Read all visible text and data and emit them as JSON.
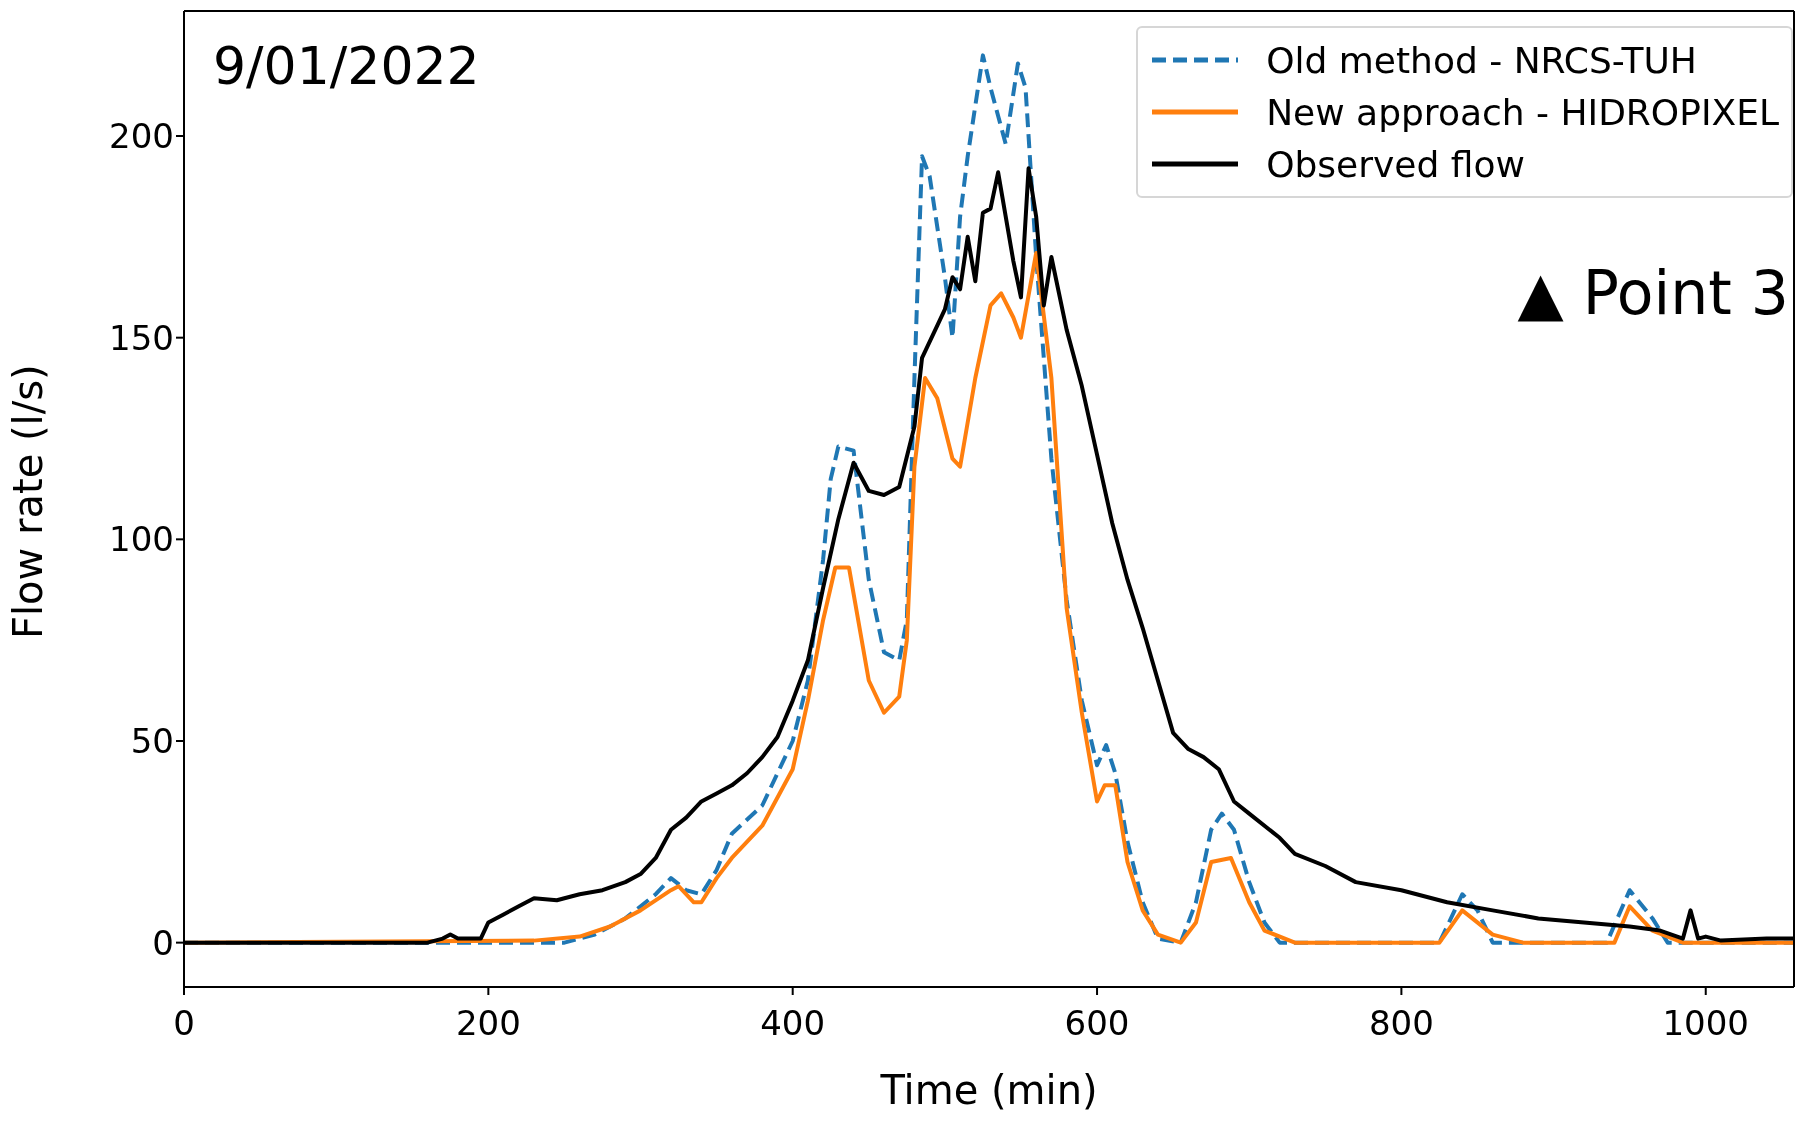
{
  "chart_data": {
    "type": "line",
    "xlabel": "Time (min)",
    "ylabel": "Flow rate (l/s)",
    "xlim": [
      0,
      1058
    ],
    "ylim": [
      -11,
      231
    ],
    "xticks": [
      0,
      200,
      400,
      600,
      800,
      1000
    ],
    "yticks": [
      0,
      50,
      100,
      150,
      200
    ],
    "legend": "top right",
    "marker": "none",
    "annotations": [
      "9/01/2022",
      "▲ Point 3"
    ],
    "series": [
      {
        "name": "Old method - NRCS-TUH",
        "color": "#1f77b4",
        "line_style": "dashed",
        "x": [
          0,
          250,
          270,
          290,
          310,
          320,
          330,
          340,
          350,
          360,
          380,
          400,
          410,
          420,
          425,
          430,
          440,
          450,
          460,
          470,
          475,
          480,
          485,
          490,
          500,
          505,
          510,
          515,
          525,
          530,
          540,
          548,
          553,
          560,
          570,
          580,
          590,
          600,
          606,
          612,
          620,
          630,
          640,
          655,
          665,
          675,
          682,
          690,
          700,
          710,
          720,
          825,
          840,
          850,
          860,
          935,
          950,
          965,
          975,
          1058
        ],
        "values": [
          0,
          0,
          2,
          6,
          12,
          16,
          13,
          12,
          18,
          27,
          34,
          50,
          65,
          95,
          115,
          123,
          122,
          90,
          72,
          70,
          80,
          140,
          195,
          190,
          165,
          150,
          180,
          195,
          220,
          212,
          198,
          218,
          212,
          170,
          120,
          85,
          60,
          44,
          49,
          42,
          25,
          10,
          1,
          0,
          10,
          28,
          32,
          28,
          15,
          5,
          0,
          0,
          12,
          8,
          0,
          0,
          13,
          6,
          0,
          0
        ]
      },
      {
        "name": "New approach - HIDROPIXEL",
        "color": "#ff7f0e",
        "line_style": "solid",
        "x": [
          0,
          230,
          260,
          280,
          300,
          320,
          325,
          335,
          340,
          350,
          360,
          380,
          400,
          410,
          420,
          428,
          437,
          450,
          460,
          470,
          475,
          480,
          487,
          495,
          505,
          510,
          520,
          530,
          537,
          545,
          550,
          560,
          570,
          580,
          590,
          600,
          605,
          612,
          620,
          630,
          640,
          655,
          665,
          675,
          688,
          700,
          710,
          730,
          825,
          840,
          860,
          880,
          940,
          950,
          965,
          985,
          1058
        ],
        "values": [
          0,
          0.5,
          1.5,
          4,
          8,
          13,
          14,
          10,
          10,
          16,
          21,
          29,
          43,
          60,
          80,
          93,
          93,
          65,
          57,
          61,
          75,
          118,
          140,
          135,
          120,
          118,
          140,
          158,
          161,
          155,
          150,
          171,
          140,
          83,
          57,
          35,
          39,
          39,
          20,
          8,
          2,
          0,
          5,
          20,
          21,
          10,
          3,
          0,
          0,
          8,
          2,
          0,
          0,
          9,
          3,
          0,
          0
        ]
      },
      {
        "name": "Observed flow",
        "color": "#000000",
        "line_style": "solid",
        "x": [
          0,
          160,
          170,
          175,
          180,
          195,
          200,
          210,
          220,
          230,
          245,
          260,
          275,
          290,
          300,
          310,
          320,
          330,
          340,
          350,
          360,
          370,
          380,
          390,
          400,
          410,
          420,
          430,
          440,
          450,
          460,
          470,
          480,
          485,
          495,
          500,
          505,
          510,
          515,
          520,
          525,
          530,
          535,
          545,
          550,
          555,
          560,
          565,
          570,
          580,
          590,
          600,
          610,
          620,
          630,
          640,
          650,
          660,
          670,
          680,
          690,
          700,
          720,
          730,
          750,
          770,
          800,
          830,
          860,
          890,
          920,
          950,
          970,
          985,
          990,
          995,
          1000,
          1010,
          1040,
          1058
        ],
        "values": [
          0,
          0,
          1,
          2,
          1,
          1,
          5,
          7,
          9,
          11,
          10.5,
          12,
          13,
          15,
          17,
          21,
          28,
          31,
          35,
          37,
          39,
          42,
          46,
          51,
          60,
          70,
          88,
          105,
          119,
          112,
          111,
          113,
          128,
          145,
          153,
          157,
          165,
          162,
          175,
          164,
          181,
          182,
          191,
          169,
          160,
          192,
          180,
          158,
          170,
          152,
          138,
          121,
          104,
          90,
          78,
          65,
          52,
          48,
          46,
          43,
          35,
          32,
          26,
          22,
          19,
          15,
          13,
          10,
          8,
          6,
          5,
          4,
          3,
          1,
          8,
          1,
          1.5,
          0.5,
          1,
          1
        ]
      }
    ]
  }
}
